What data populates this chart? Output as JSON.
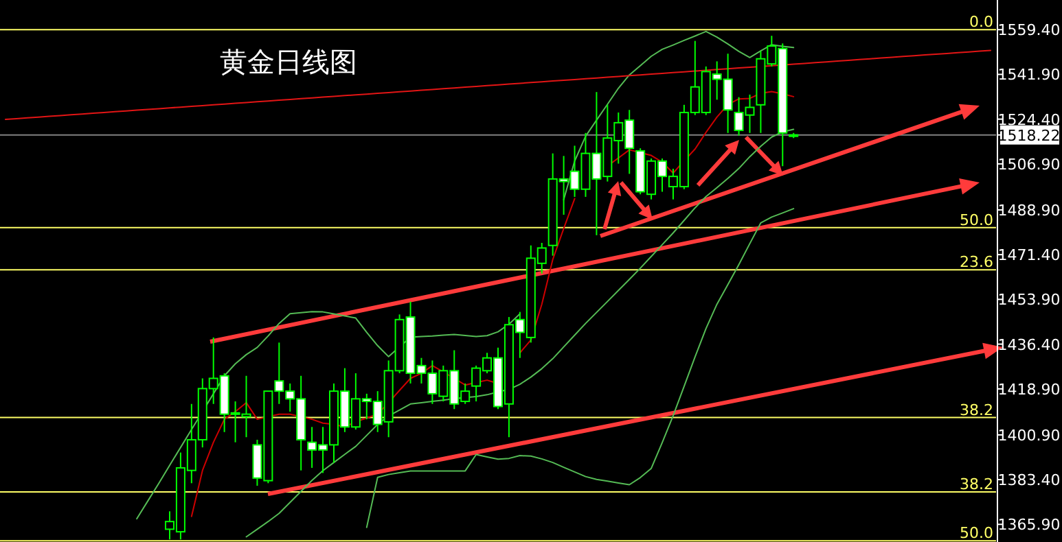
{
  "chart_data": {
    "type": "candlestick",
    "title": "黄金日线图",
    "categories": [
      null,
      null,
      null,
      null,
      null,
      null,
      null,
      null,
      null,
      null,
      null,
      null,
      null,
      null,
      null,
      null,
      null,
      null,
      null,
      null,
      null,
      null,
      null,
      null,
      null,
      null,
      null,
      null,
      null,
      null,
      null,
      null,
      null,
      null,
      null,
      null,
      null,
      null,
      null,
      null,
      null,
      null,
      null,
      null,
      null,
      null,
      null,
      null,
      null,
      null,
      null,
      null,
      null,
      null,
      null,
      null,
      null,
      null,
      null,
      null,
      null,
      null,
      null,
      null,
      null,
      null,
      null,
      null,
      null,
      null,
      null,
      null,
      null,
      null,
      null,
      null,
      null,
      null,
      null,
      null,
      null,
      null,
      null,
      null,
      null,
      null,
      null,
      null,
      null,
      null,
      null
    ],
    "ohlc": [
      null,
      null,
      null,
      null,
      null,
      null,
      null,
      null,
      null,
      null,
      null,
      null,
      null,
      null,
      null,
      [
        1364,
        1371,
        1360,
        1367
      ],
      [
        1363,
        1394,
        1360,
        1388
      ],
      [
        1387,
        1413,
        1382,
        1399
      ],
      [
        1399,
        1423,
        1396,
        1419
      ],
      [
        1419,
        1439,
        1413,
        1423
      ],
      [
        1424,
        1425,
        1402,
        1409
      ],
      [
        1409.5,
        1414,
        1398,
        1409
      ],
      [
        1408,
        1424,
        1400,
        1409
      ],
      [
        1397,
        1399,
        1381,
        1384
      ],
      [
        1383,
        1418,
        1382,
        1418
      ],
      [
        1422,
        1437,
        1413,
        1418
      ],
      [
        1418,
        1421,
        1410,
        1415
      ],
      [
        1415,
        1424,
        1387,
        1399
      ],
      [
        1398,
        1404,
        1388,
        1395
      ],
      [
        1397,
        1404,
        1386,
        1395
      ],
      [
        1397,
        1421,
        1390,
        1418
      ],
      [
        1418,
        1427,
        1402,
        1404
      ],
      [
        1404,
        1425,
        1403,
        1415
      ],
      [
        1415,
        1417,
        1407,
        1414
      ],
      [
        1414,
        1418,
        1402,
        1405
      ],
      [
        1406,
        1430,
        1400,
        1426
      ],
      [
        1426,
        1448,
        1425,
        1446
      ],
      [
        1447,
        1453,
        1421,
        1425
      ],
      [
        1428,
        1431,
        1421,
        1425
      ],
      [
        1425,
        1430,
        1413,
        1417
      ],
      [
        1416,
        1428,
        1414,
        1426
      ],
      [
        1426,
        1434,
        1411,
        1413
      ],
      [
        1414,
        1421,
        1413,
        1418
      ],
      [
        1420,
        1428,
        1414,
        1427
      ],
      [
        1426,
        1433,
        1425,
        1431
      ],
      [
        1431,
        1435,
        1411,
        1412
      ],
      [
        1413,
        1447,
        1400,
        1444
      ],
      [
        1446,
        1449,
        1431,
        1441
      ],
      [
        1439,
        1475,
        1437,
        1470
      ],
      [
        1468,
        1476,
        1464,
        1474
      ],
      [
        1475,
        1511,
        1471,
        1501
      ],
      [
        1501,
        1510,
        1487,
        1500
      ],
      [
        1504,
        1514,
        1494,
        1497
      ],
      [
        1497,
        1519,
        1494,
        1511
      ],
      [
        1511,
        1535,
        1479,
        1501
      ],
      [
        1502,
        1530,
        1500,
        1517
      ],
      [
        1516,
        1527,
        1507,
        1523
      ],
      [
        1524,
        1528,
        1503,
        1513
      ],
      [
        1512,
        1513,
        1495,
        1496
      ],
      [
        1495,
        1509,
        1493,
        1508
      ],
      [
        1508,
        1509,
        1496,
        1502
      ],
      [
        1498,
        1505,
        1493,
        1502
      ],
      [
        1498,
        1530,
        1497,
        1527
      ],
      [
        1527,
        1555,
        1526,
        1537
      ],
      [
        1527,
        1545,
        1526,
        1543
      ],
      [
        1542,
        1547,
        1532,
        1540
      ],
      [
        1540,
        1550,
        1519,
        1528
      ],
      [
        1527,
        1533,
        1518,
        1520
      ],
      [
        1526,
        1534,
        1519,
        1529
      ],
      [
        1530,
        1551,
        1519,
        1548
      ],
      [
        1546,
        1557,
        1545,
        1553
      ],
      [
        1552,
        1554,
        1506,
        1519
      ],
      [
        1518,
        1519,
        1517,
        1518.22
      ],
      null,
      null,
      null,
      null,
      null,
      null,
      null,
      null,
      null,
      null,
      null,
      null,
      null,
      null,
      null,
      null,
      null,
      null
    ],
    "series": [
      {
        "type": "line",
        "color": "#cc0000",
        "values": [
          null,
          null,
          null,
          null,
          null,
          null,
          null,
          null,
          null,
          null,
          null,
          null,
          null,
          null,
          null,
          null,
          null,
          1369,
          1387,
          1398,
          1407,
          1410,
          1413.5,
          1407,
          1408,
          1409,
          1409,
          1408,
          1407,
          1405.5,
          1405,
          1404,
          1406,
          1407.5,
          1409,
          1413.5,
          1418.3,
          1423,
          1425,
          1428,
          1425.5,
          1423,
          1420.4,
          1421.4,
          1422.3,
          1421,
          null,
          1433,
          1438,
          1452,
          1469.5,
          1481.6,
          1493.3,
          null,
          null,
          1506.1,
          1509.2,
          1512.4,
          1511.3,
          1510.2,
          1507.6,
          1503.3,
          1508.1,
          1512.7,
          1519.2,
          1525.2,
          1530.1,
          1532.3,
          1532.5,
          1534.5,
          1535.2,
          1534.3,
          1533.2,
          null,
          null,
          null,
          null,
          null,
          null,
          null,
          null,
          null,
          null,
          null,
          null,
          null,
          null,
          null,
          null,
          null,
          null
        ]
      },
      {
        "type": "line",
        "color": "#55bb55",
        "values": [
          null,
          null,
          null,
          null,
          null,
          null,
          null,
          null,
          null,
          null,
          null,
          null,
          1368.1,
          1375,
          1381.9,
          1389,
          1396,
          1403,
          1410,
          1417,
          1424,
          1428.7,
          1432.3,
          1435.1,
          1439.6,
          1444.5,
          1448.3,
          1448.7,
          1449.1,
          1449,
          1448.2,
          1447.4,
          1446.6,
          1441,
          1435.8,
          1431.5,
          1435.3,
          1439.1,
          1439.4,
          1439.6,
          1439.9,
          1440.2,
          1439.8,
          1439.4,
          1439.7,
          1441.2,
          1444.2,
          1448.2,
          null,
          null,
          null,
          1492.9,
          1508,
          1517.7,
          1524,
          1530.2,
          1536.5,
          1541.7,
          1545.3,
          1549,
          1551.7,
          1553.4,
          1555.2,
          1556.9,
          1558.7,
          1556.5,
          1553.8,
          1550.9,
          1548.5,
          1551.1,
          1553.5,
          1552.9,
          1552.4,
          null,
          null,
          null,
          null,
          null,
          null,
          null,
          null,
          null,
          null,
          null,
          null,
          null,
          null,
          null,
          null,
          null,
          null
        ]
      },
      {
        "type": "line",
        "color": "#55bb55",
        "values": [
          null,
          null,
          null,
          null,
          null,
          null,
          null,
          null,
          null,
          null,
          null,
          null,
          null,
          null,
          null,
          null,
          null,
          null,
          null,
          null,
          null,
          null,
          1361,
          1364,
          1367,
          1370.2,
          1374.5,
          1378.8,
          1383.1,
          1386.9,
          1390.1,
          1393.3,
          1396.4,
          1400.7,
          1405,
          1408.3,
          1410.6,
          1413,
          1413.5,
          1414,
          1414.5,
          1415.1,
          1415.5,
          1415.9,
          1416.6,
          1417.7,
          1418.7,
          1420.7,
          1423.5,
          1426.8,
          1430.7,
          1435.3,
          1439.9,
          1444.5,
          1448.8,
          1453.1,
          1457.4,
          1461.7,
          1466.1,
          1470.7,
          1475.3,
          1479.9,
          1484.8,
          1489.7,
          1494.1,
          1497.6,
          1501.2,
          1505.1,
          1509.7,
          1513.8,
          1517.4,
          1519.4,
          1520.4,
          null,
          null,
          null,
          null,
          null,
          null,
          null,
          null,
          null,
          null,
          null,
          null,
          null,
          null,
          null,
          null,
          null,
          null
        ]
      },
      {
        "type": "line",
        "color": "#55bb55",
        "values": [
          null,
          null,
          null,
          null,
          null,
          null,
          null,
          null,
          null,
          null,
          null,
          null,
          null,
          null,
          null,
          null,
          null,
          null,
          null,
          null,
          null,
          null,
          null,
          null,
          null,
          null,
          null,
          null,
          null,
          null,
          null,
          null,
          null,
          1364.7,
          1384.3,
          1385.4,
          1386.1,
          1386.8,
          1386.8,
          1386.8,
          1386.8,
          1386.8,
          1386.8,
          1393.2,
          1392.3,
          1391.4,
          1391.7,
          1392.8,
          1392.6,
          1391.5,
          1390.1,
          1388.2,
          1386.4,
          1384.6,
          1383.5,
          1382.8,
          1382.1,
          1381.4,
          1384.2,
          1387.8,
          1397.9,
          1408.4,
          1419.9,
          1431.4,
          1442.5,
          1452,
          1459.7,
          1467.5,
          1475.7,
          1483.8,
          1486.1,
          1487.7,
          1489.4,
          null,
          null,
          null,
          null,
          null,
          null,
          null,
          null,
          null,
          null,
          null,
          null,
          null,
          null,
          null,
          null,
          null,
          null
        ]
      },
      {
        "type": "line",
        "color": "#e31515",
        "values": [
          1524.3,
          1524.6,
          1524.9,
          1525.2,
          1525.5,
          1525.8,
          1526.1,
          1526.4,
          1526.7,
          1527,
          1527.3,
          1527.6,
          1527.9,
          1528.2,
          1528.5,
          1528.8,
          1529.1,
          1529.4,
          1529.7,
          1530,
          1530.3,
          1530.6,
          1530.9,
          1531.2,
          1531.5,
          1531.8,
          1532.1,
          1532.4,
          1532.7,
          1533,
          1533.3,
          1533.6,
          1533.9,
          1534.2,
          1534.5,
          1534.8,
          1535.1,
          1535.4,
          1535.7,
          1536,
          1536.3,
          1536.6,
          1536.9,
          1537.2,
          1537.5,
          1537.8,
          1538.1,
          1538.4,
          1538.7,
          1539,
          1539.3,
          1539.6,
          1539.9,
          1540.2,
          1540.5,
          1540.8,
          1541.1,
          1541.4,
          1541.7,
          1542,
          1542.3,
          1542.6,
          1542.9,
          1543.2,
          1543.5,
          1543.8,
          1544.1,
          1544.4,
          1544.7,
          1545,
          1545.3,
          1545.6,
          1545.9,
          1546.2,
          1546.5,
          1546.8,
          1547.1,
          1547.4,
          1547.7,
          1548,
          1548.3,
          1548.6,
          1548.9,
          1549.2,
          1549.5,
          1549.8,
          1550.1,
          1550.4,
          1550.7,
          1551,
          1551.3
        ]
      }
    ],
    "ylim": [
      1359,
      1571
    ],
    "yticks": [
      {
        "value": 1559.4,
        "label": "1559.40"
      },
      {
        "value": 1541.9,
        "label": "1541.90"
      },
      {
        "value": 1524.4,
        "label": "1524.40"
      },
      {
        "value": 1518.22,
        "label": "1518.22"
      },
      {
        "value": 1506.9,
        "label": "1506.90"
      },
      {
        "value": 1488.9,
        "label": "1488.90"
      },
      {
        "value": 1471.4,
        "label": "1471.40"
      },
      {
        "value": 1453.9,
        "label": "1453.90"
      },
      {
        "value": 1436.4,
        "label": "1436.40"
      },
      {
        "value": 1418.9,
        "label": "1418.90"
      },
      {
        "value": 1400.9,
        "label": "1400.90"
      },
      {
        "value": 1383.4,
        "label": "1383.40"
      },
      {
        "value": 1365.9,
        "label": "1365.90"
      }
    ],
    "tick_labels": "y",
    "grid": false,
    "ref_lines": [
      {
        "axis": "y",
        "value": 1559.4,
        "color": "#ffff66"
      },
      {
        "axis": "y",
        "value": 1482,
        "color": "#ffff66"
      },
      {
        "axis": "y",
        "value": 1465.5,
        "color": "#ffff66"
      },
      {
        "axis": "y",
        "value": 1407.7,
        "color": "#ffff66"
      },
      {
        "axis": "y",
        "value": 1378.6,
        "color": "#ffff66"
      },
      {
        "axis": "y",
        "value": 1359.5,
        "color": "#ffff66"
      },
      {
        "axis": "y",
        "value": 1518.22,
        "color": "#808080"
      }
    ],
    "annotations": [
      {
        "text": "0.0",
        "y": 1559.4
      },
      {
        "text": "50.0",
        "y": 1482
      },
      {
        "text": "23.6",
        "y": 1465.5
      },
      {
        "text": "38.2",
        "y": 1407.7
      },
      {
        "text": "38.2",
        "y": 1378.6
      },
      {
        "text": "50.0",
        "y": 1359.5
      }
    ]
  }
}
